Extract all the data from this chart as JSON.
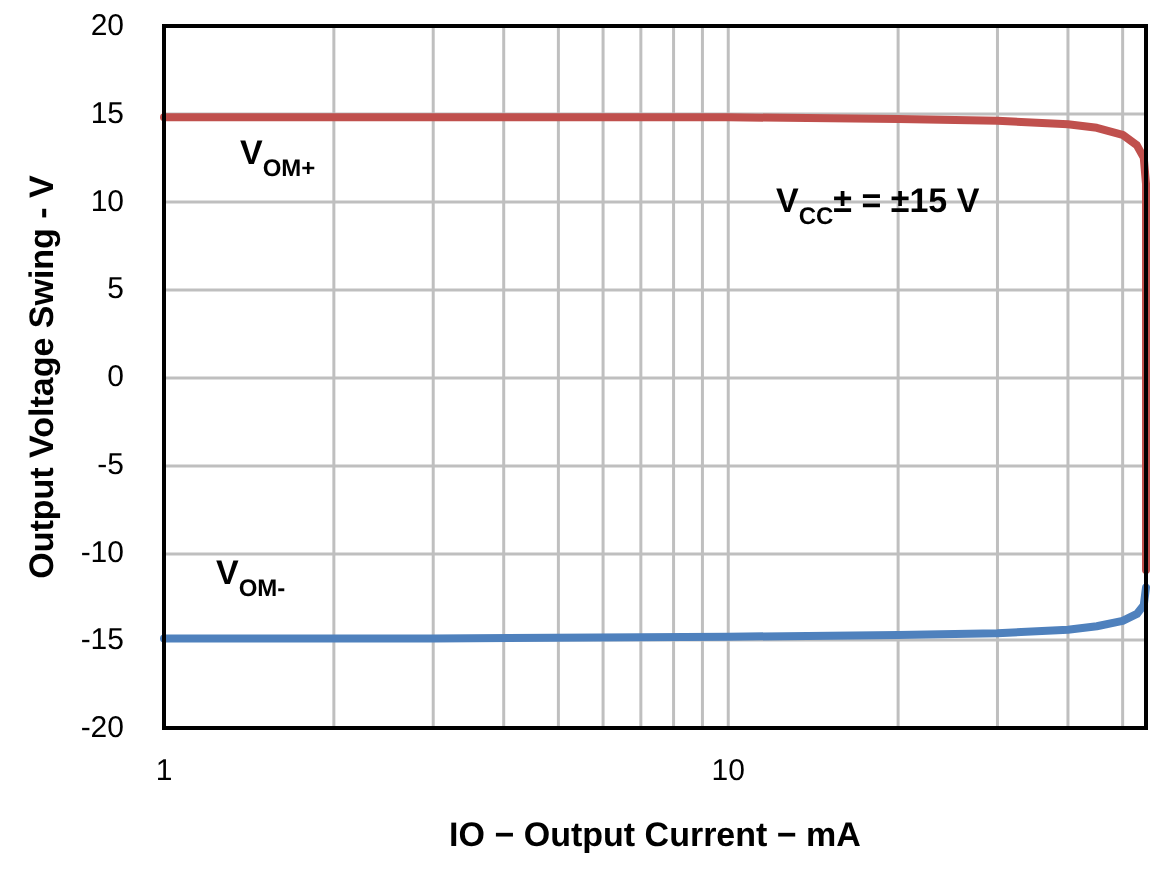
{
  "chart_data": {
    "type": "line",
    "xlabel": "IO − Output Current − mA",
    "ylabel": "Output Voltage Swing - V",
    "log": "x",
    "xlim": [
      1,
      55
    ],
    "xticks": [
      1,
      {
        "value": 2,
        "label": null
      },
      {
        "value": 3,
        "label": null
      },
      {
        "value": 4,
        "label": null
      },
      {
        "value": 5,
        "label": null
      },
      {
        "value": 6,
        "label": null
      },
      {
        "value": 7,
        "label": null
      },
      {
        "value": 8,
        "label": null
      },
      {
        "value": 9,
        "label": null
      },
      10,
      {
        "value": 20,
        "label": null
      },
      {
        "value": 30,
        "label": null
      },
      {
        "value": 40,
        "label": null
      },
      {
        "value": 50,
        "label": null
      }
    ],
    "ylim": [
      -20,
      20
    ],
    "yticks": [
      -20,
      -15,
      -10,
      -5,
      0,
      5,
      10,
      15,
      20
    ],
    "grid": true,
    "marker": "none",
    "line_style": "solid",
    "series": [
      {
        "color": "#c0504d",
        "x": [
          1,
          3,
          10,
          20,
          30,
          40,
          45,
          50,
          53,
          54.5,
          55,
          55
        ],
        "values": [
          14.8,
          14.8,
          14.8,
          14.7,
          14.6,
          14.4,
          14.2,
          13.8,
          13.2,
          12.5,
          11,
          -11
        ]
      },
      {
        "color": "#4f81bd",
        "x": [
          1,
          3,
          10,
          20,
          30,
          40,
          45,
          50,
          53,
          54.5,
          55
        ],
        "values": [
          -14.9,
          -14.9,
          -14.8,
          -14.7,
          -14.6,
          -14.4,
          -14.2,
          -13.9,
          -13.5,
          -13,
          -12
        ]
      }
    ],
    "annotations": [
      "V$_{OM+}$",
      "V$_{OM-}$",
      "V$_{CC}$± = ±15 V"
    ]
  }
}
